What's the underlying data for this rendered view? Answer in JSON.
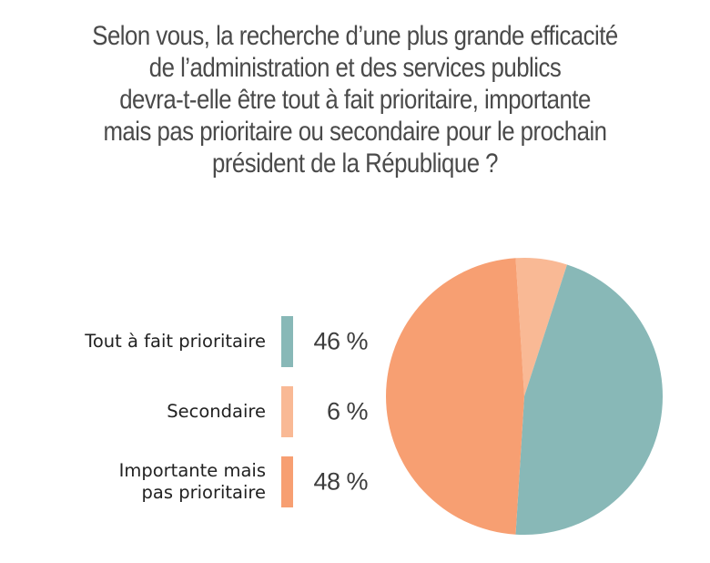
{
  "chart_data": {
    "type": "pie",
    "title": "Selon vous, la recherche d’une plus grande efficacité de l’administration et des services publics devra-t-elle être tout à fait prioritaire, importante mais pas prioritaire ou secondaire pour le prochain président de la République ?",
    "title_lines": [
      "Selon vous, la recherche d’une plus grande efficacité",
      "de l’administration et des services publics",
      "devra-t-elle être tout à fait prioritaire, importante",
      "mais pas prioritaire ou secondaire pour le prochain",
      "président de la République ?"
    ],
    "slices": [
      {
        "label": "Tout à fait prioritaire",
        "value": 46,
        "display": "46 %",
        "color": "#88b8b7"
      },
      {
        "label": "Secondaire",
        "value": 6,
        "display": "6 %",
        "color": "#f9b995"
      },
      {
        "label": "Importante mais pas prioritaire",
        "value": 48,
        "display": "48 %",
        "color": "#f79f72"
      }
    ],
    "legend_order": [
      0,
      1,
      2
    ],
    "legend_position": "left",
    "unit": "%"
  }
}
